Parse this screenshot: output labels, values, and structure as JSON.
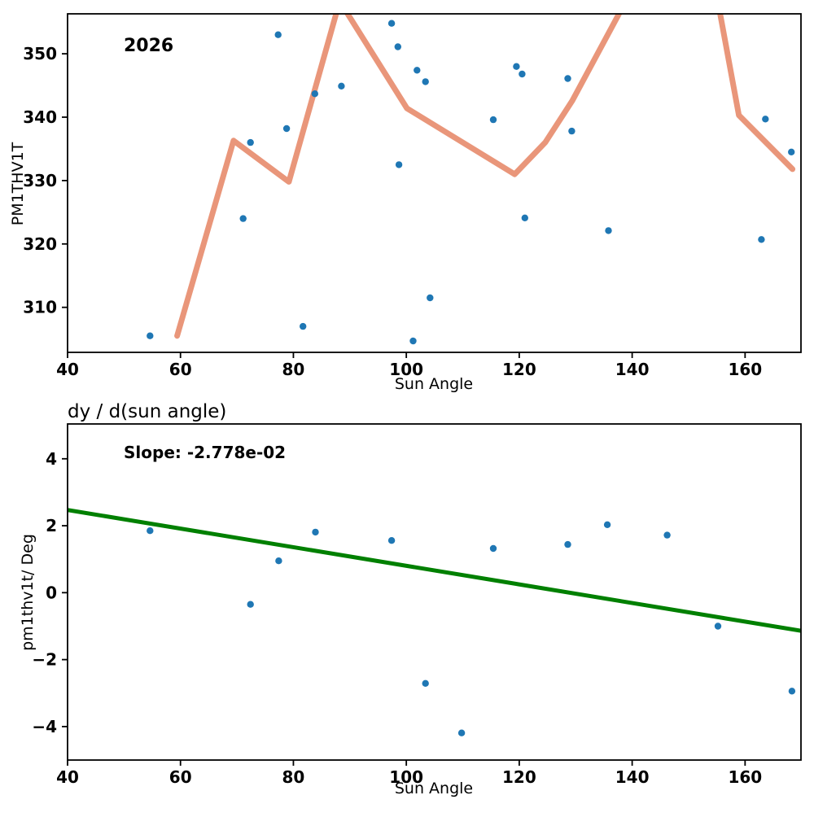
{
  "figure": {
    "background": "#ffffff",
    "text_color": "#000000"
  },
  "chart_data": [
    {
      "type": "scatter",
      "annotation": "2026",
      "xlabel": "Sun Angle",
      "ylabel": "PM1THV1T",
      "xlim": [
        40,
        169.9
      ],
      "ylim": [
        302.9,
        356.3
      ],
      "xticks": [
        40,
        60,
        80,
        100,
        120,
        140,
        160
      ],
      "yticks": [
        310,
        320,
        330,
        340,
        350
      ],
      "grid": false,
      "scatter_color": "#1f77b4",
      "points": [
        [
          54.6,
          305.5
        ],
        [
          71.1,
          324.0
        ],
        [
          72.4,
          336.0
        ],
        [
          77.3,
          353.0
        ],
        [
          78.8,
          338.2
        ],
        [
          81.7,
          307.0
        ],
        [
          83.8,
          343.7
        ],
        [
          88.5,
          344.9
        ],
        [
          97.4,
          354.8
        ],
        [
          98.5,
          351.1
        ],
        [
          98.7,
          332.5
        ],
        [
          101.2,
          304.7
        ],
        [
          101.9,
          347.4
        ],
        [
          103.4,
          345.6
        ],
        [
          104.2,
          311.5
        ],
        [
          115.4,
          339.6
        ],
        [
          119.5,
          348.0
        ],
        [
          120.5,
          346.8
        ],
        [
          121.0,
          324.1
        ],
        [
          128.6,
          346.1
        ],
        [
          129.3,
          337.8
        ],
        [
          135.8,
          322.1
        ],
        [
          162.9,
          320.7
        ],
        [
          163.6,
          339.7
        ],
        [
          168.2,
          334.5
        ]
      ],
      "trend_line": {
        "color": "#e9967a",
        "points": [
          [
            59.4,
            305.5
          ],
          [
            69.4,
            336.3
          ],
          [
            79.2,
            329.8
          ],
          [
            88.2,
            358.3
          ],
          [
            100.1,
            341.4
          ],
          [
            119.2,
            331.0
          ],
          [
            124.6,
            336.0
          ],
          [
            129.4,
            342.6
          ],
          [
            151.0,
            378.4
          ],
          [
            158.9,
            340.3
          ],
          [
            168.4,
            331.8
          ]
        ]
      }
    },
    {
      "type": "scatter",
      "title": "dy / d(sun angle)",
      "annotation": "Slope: -2.778e-02",
      "slope": "-2.778e-02",
      "xlabel": "Sun Angle",
      "ylabel": "pm1thv1t/ Deg",
      "xlim": [
        40,
        169.9
      ],
      "ylim": [
        -5.0,
        5.04
      ],
      "xticks": [
        40,
        60,
        80,
        100,
        120,
        140,
        160
      ],
      "yticks": [
        -4,
        -2,
        0,
        2,
        4
      ],
      "ytick_labels": [
        "−4",
        "−2",
        "0",
        "2",
        "4"
      ],
      "grid": false,
      "scatter_color": "#1f77b4",
      "points": [
        [
          54.6,
          1.85
        ],
        [
          72.4,
          -0.35
        ],
        [
          77.4,
          0.95
        ],
        [
          83.9,
          1.81
        ],
        [
          97.4,
          1.56
        ],
        [
          103.4,
          -2.71
        ],
        [
          109.8,
          -4.19
        ],
        [
          115.4,
          1.32
        ],
        [
          128.6,
          1.44
        ],
        [
          135.6,
          2.03
        ],
        [
          146.2,
          1.72
        ],
        [
          155.2,
          -1.0
        ],
        [
          168.3,
          -2.94
        ]
      ],
      "fit_line": {
        "color": "#008000",
        "points": [
          [
            40,
            2.47
          ],
          [
            169.9,
            -1.14
          ]
        ]
      }
    }
  ]
}
